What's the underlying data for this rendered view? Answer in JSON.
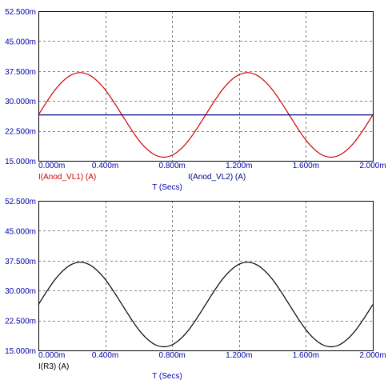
{
  "colors": {
    "tick_text": "#0000aa",
    "frame": "#000000",
    "grid": "#808080",
    "red_trace": "#cc0000",
    "blue_trace": "#000080",
    "black_trace": "#000000",
    "label_gray": "#333333"
  },
  "chart_data": [
    {
      "type": "line",
      "xlabel": "T (Secs)",
      "xlim": [
        0,
        2.0
      ],
      "ylim": [
        15.0,
        52.5
      ],
      "x_ticks": [
        0.0,
        0.4,
        0.8,
        1.2,
        1.6,
        2.0
      ],
      "x_tick_labels": [
        "0.000m",
        "0.400m",
        "0.800m",
        "1.200m",
        "1.600m",
        "2.000m"
      ],
      "y_ticks": [
        15.0,
        22.5,
        30.0,
        37.5,
        45.0,
        52.5
      ],
      "y_tick_labels": [
        "15.000m",
        "22.500m",
        "30.000m",
        "37.500m",
        "45.000m",
        "52.500m"
      ],
      "grid": true,
      "series": [
        {
          "name": "I(Anod_VL1) (A)",
          "color": "#cc0000",
          "x": [
            0.0,
            0.05,
            0.1,
            0.15,
            0.2,
            0.25,
            0.3,
            0.35,
            0.4,
            0.45,
            0.5,
            0.55,
            0.6,
            0.65,
            0.7,
            0.75,
            0.8,
            0.85,
            0.9,
            0.95,
            1.0,
            1.05,
            1.1,
            1.15,
            1.2,
            1.25,
            1.3,
            1.35,
            1.4,
            1.45,
            1.5,
            1.55,
            1.6,
            1.65,
            1.7,
            1.75,
            1.8,
            1.85,
            1.9,
            1.95,
            2.0
          ],
          "values": [
            26.5,
            29.8,
            32.8,
            35.1,
            36.6,
            37.1,
            36.6,
            35.1,
            32.8,
            29.8,
            26.5,
            23.2,
            20.2,
            17.9,
            16.4,
            15.9,
            16.4,
            17.9,
            20.2,
            23.2,
            26.5,
            29.8,
            32.8,
            35.1,
            36.6,
            37.1,
            36.6,
            35.1,
            32.8,
            29.8,
            26.5,
            23.2,
            20.2,
            17.9,
            16.4,
            15.9,
            16.4,
            17.9,
            20.2,
            23.2,
            26.5
          ]
        },
        {
          "name": "I(Anod_VL2) (A)",
          "color": "#000080",
          "x": [
            0.0,
            2.0
          ],
          "values": [
            26.5,
            26.5
          ]
        }
      ]
    },
    {
      "type": "line",
      "xlabel": "T (Secs)",
      "xlim": [
        0,
        2.0
      ],
      "ylim": [
        15.0,
        52.5
      ],
      "x_ticks": [
        0.0,
        0.4,
        0.8,
        1.2,
        1.6,
        2.0
      ],
      "x_tick_labels": [
        "0.000m",
        "0.400m",
        "0.800m",
        "1.200m",
        "1.600m",
        "2.000m"
      ],
      "y_ticks": [
        15.0,
        22.5,
        30.0,
        37.5,
        45.0,
        52.5
      ],
      "y_tick_labels": [
        "15.000m",
        "22.500m",
        "30.000m",
        "37.500m",
        "45.000m",
        "52.500m"
      ],
      "grid": true,
      "series": [
        {
          "name": "I(R3) (A)",
          "color": "#000000",
          "x": [
            0.0,
            0.05,
            0.1,
            0.15,
            0.2,
            0.25,
            0.3,
            0.35,
            0.4,
            0.45,
            0.5,
            0.55,
            0.6,
            0.65,
            0.7,
            0.75,
            0.8,
            0.85,
            0.9,
            0.95,
            1.0,
            1.05,
            1.1,
            1.15,
            1.2,
            1.25,
            1.3,
            1.35,
            1.4,
            1.45,
            1.5,
            1.55,
            1.6,
            1.65,
            1.7,
            1.75,
            1.8,
            1.85,
            1.9,
            1.95,
            2.0
          ],
          "values": [
            26.5,
            29.8,
            32.8,
            35.1,
            36.6,
            37.1,
            36.6,
            35.1,
            32.8,
            29.8,
            26.5,
            23.2,
            20.2,
            17.9,
            16.4,
            15.9,
            16.4,
            17.9,
            20.2,
            23.2,
            26.5,
            29.8,
            32.8,
            35.1,
            36.6,
            37.1,
            36.6,
            35.1,
            32.8,
            29.8,
            26.5,
            23.2,
            20.2,
            17.9,
            16.4,
            15.9,
            16.4,
            17.9,
            20.2,
            23.2,
            26.5
          ]
        }
      ]
    }
  ]
}
